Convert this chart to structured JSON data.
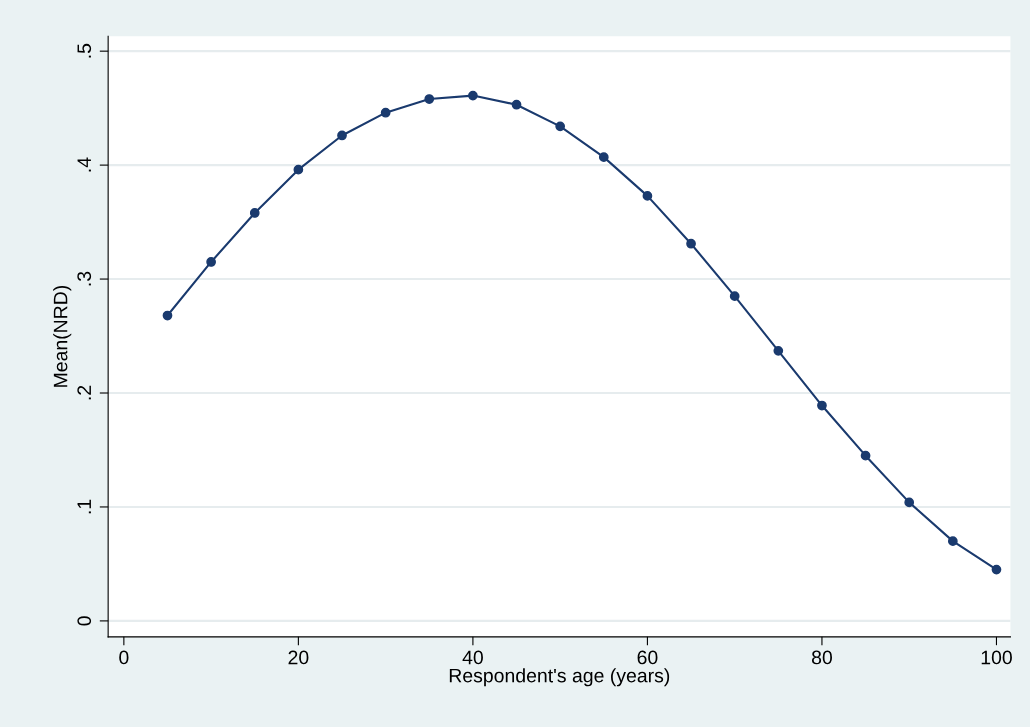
{
  "chart_data": {
    "type": "line",
    "xlabel": "Respondent's age (years)",
    "ylabel": "Mean(NRD)",
    "x": [
      5,
      10,
      15,
      20,
      25,
      30,
      35,
      40,
      45,
      50,
      55,
      60,
      65,
      70,
      75,
      80,
      85,
      90,
      95,
      100
    ],
    "series": [
      {
        "color": "#1a3a6e",
        "values": [
          0.268,
          0.315,
          0.358,
          0.396,
          0.426,
          0.446,
          0.458,
          0.461,
          0.453,
          0.434,
          0.407,
          0.373,
          0.331,
          0.285,
          0.237,
          0.189,
          0.145,
          0.104,
          0.07,
          0.045
        ]
      }
    ],
    "marker": "circle",
    "line_style": "solid",
    "grid": "y",
    "legend": false,
    "xlim": [
      -1.8,
      101.6
    ],
    "xticks": [
      0,
      20,
      40,
      60,
      80,
      100
    ],
    "ylim": [
      -0.014,
      0.513
    ],
    "yticks": [
      {
        "value": 0,
        "label": "0"
      },
      {
        "value": 0.1,
        "label": ".1"
      },
      {
        "value": 0.2,
        "label": ".2"
      },
      {
        "value": 0.3,
        "label": ".3"
      },
      {
        "value": 0.4,
        "label": ".4"
      },
      {
        "value": 0.5,
        "label": ".5"
      }
    ]
  }
}
